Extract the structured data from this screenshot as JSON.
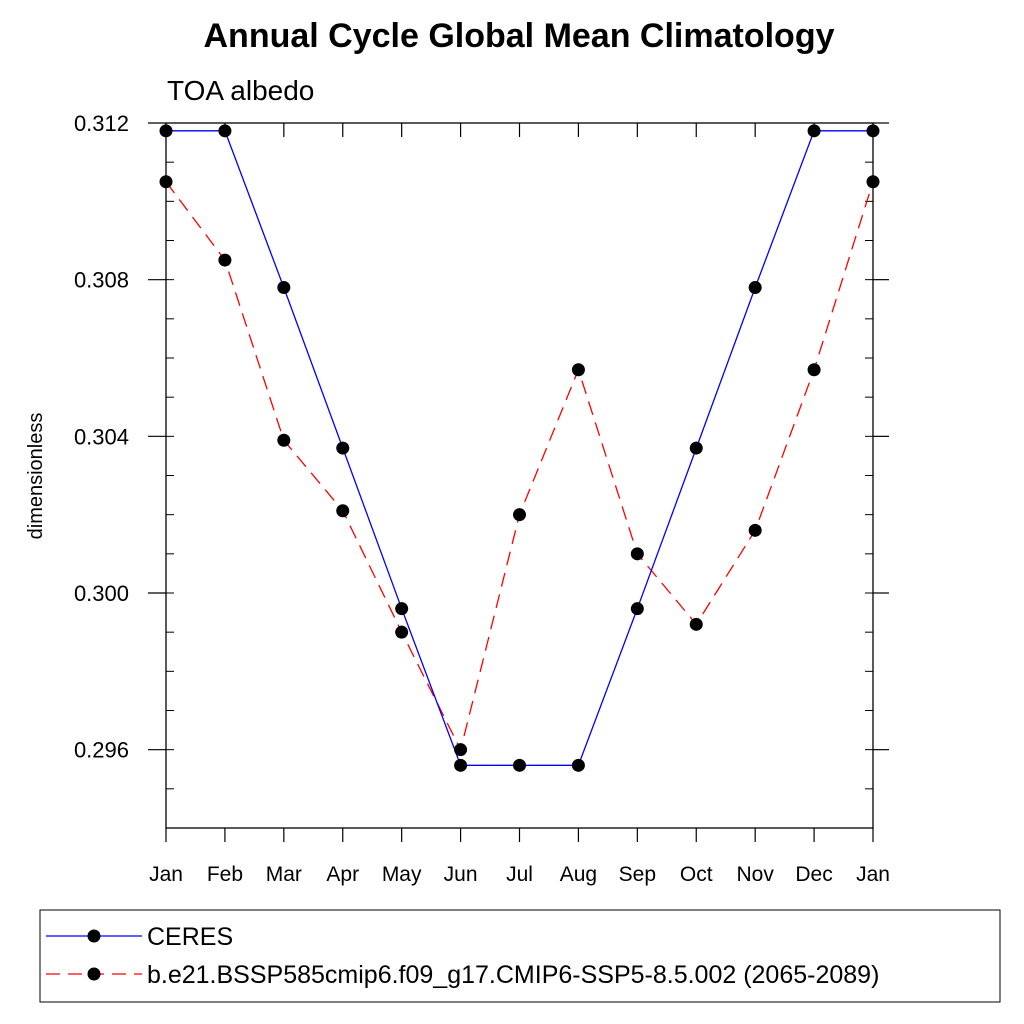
{
  "chart_data": {
    "type": "line",
    "title": "Annual Cycle Global Mean Climatology",
    "subtitle": "TOA albedo",
    "xlabel": "",
    "ylabel": "dimensionless",
    "categories": [
      "Jan",
      "Feb",
      "Mar",
      "Apr",
      "May",
      "Jun",
      "Jul",
      "Aug",
      "Sep",
      "Oct",
      "Nov",
      "Dec",
      "Jan"
    ],
    "ylim": [
      0.294,
      0.312
    ],
    "yticks": [
      0.296,
      0.3,
      0.304,
      0.308,
      0.312
    ],
    "ytick_labels": [
      "0.296",
      "0.300",
      "0.304",
      "0.308",
      "0.312"
    ],
    "y_minor_step": 0.001,
    "grid": false,
    "legend_position": "bottom",
    "series": [
      {
        "name": "CERES",
        "color": "#0000ff",
        "dash": "solid",
        "marker": "filled-circle",
        "values": [
          0.3118,
          0.3118,
          0.3078,
          0.3037,
          0.2996,
          0.2956,
          0.2956,
          0.2956,
          0.2996,
          0.3037,
          0.3078,
          0.3118,
          0.3118
        ]
      },
      {
        "name": "b.e21.BSSP585cmip6.f09_g17.CMIP6-SSP5-8.5.002 (2065-2089)",
        "color": "#ff0000",
        "dash": "dashed",
        "marker": "filled-circle",
        "values": [
          0.3105,
          0.3085,
          0.3039,
          0.3021,
          0.299,
          0.296,
          0.302,
          0.3057,
          0.301,
          0.2992,
          0.3016,
          0.3057,
          0.3105
        ]
      }
    ]
  }
}
